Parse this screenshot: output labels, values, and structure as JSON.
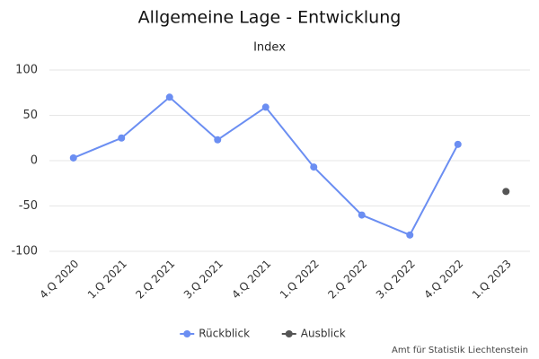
{
  "chart_data": {
    "type": "line",
    "title": "Allgemeine Lage - Entwicklung",
    "subtitle": "Index",
    "categories": [
      "4.Q 2020",
      "1.Q 2021",
      "2.Q 2021",
      "3.Q 2021",
      "4.Q 2021",
      "1.Q 2022",
      "2.Q 2022",
      "3.Q 2022",
      "4.Q 2022",
      "1.Q 2023"
    ],
    "series": [
      {
        "name": "Rückblick",
        "color": "#6b8ef2",
        "values": [
          3,
          25,
          70,
          23,
          59,
          -7,
          -60,
          -82,
          18,
          null
        ]
      },
      {
        "name": "Ausblick",
        "color": "#555555",
        "values": [
          null,
          null,
          null,
          null,
          null,
          null,
          null,
          null,
          null,
          -34
        ]
      }
    ],
    "ylim": [
      -100,
      100
    ],
    "yticks": [
      -100,
      -50,
      0,
      50,
      100
    ],
    "grid": true,
    "legend": "bottom",
    "source": "Amt für Statistik Liechtenstein"
  }
}
